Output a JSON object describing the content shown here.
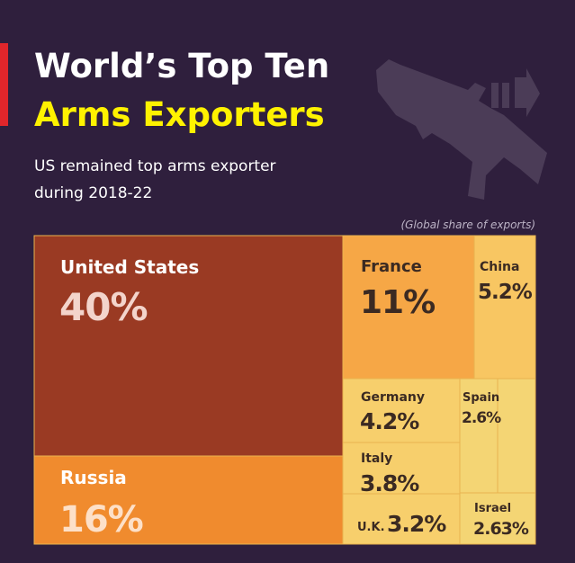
{
  "chart_data": {
    "type": "treemap",
    "title": [
      "World’s Top Ten",
      "Arms Exporters"
    ],
    "subtitle": [
      "US remained top arms exporter",
      "during 2018-22"
    ],
    "note": "(Global share of exports)",
    "categories": [
      "United States",
      "Russia",
      "France",
      "China",
      "Germany",
      "Italy",
      "U.K.",
      "Spain",
      null,
      "Israel"
    ],
    "values": [
      40,
      16,
      11,
      5.2,
      4.2,
      3.8,
      3.2,
      2.6,
      2.4,
      2.63
    ],
    "value_labels": [
      "40%",
      "16%",
      "11%",
      "5.2%",
      "4.2%",
      "3.8%",
      "3.2%",
      "2.6%",
      null,
      "2.63%"
    ],
    "colors": [
      "#9a3a23",
      "#f08b2e",
      "#f6a746",
      "#f8c662",
      "#f7cf6c",
      "#f7cf6c",
      "#f7cf6c",
      "#f4d574",
      "#f4d574",
      "#f4d574"
    ]
  }
}
